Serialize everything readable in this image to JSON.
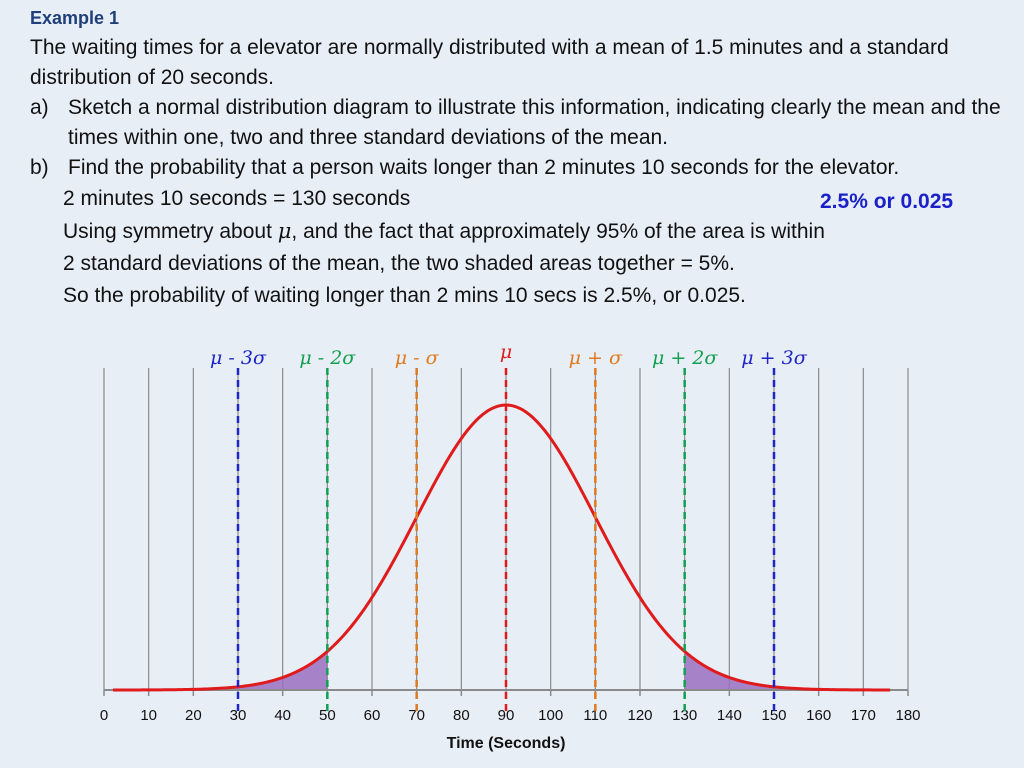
{
  "slide": {
    "heading": "Example 1",
    "intro": "The waiting times for a elevator are normally distributed with a mean of 1.5 minutes and a standard distribution of 20 seconds.",
    "items": [
      {
        "label": "a)",
        "text": "Sketch a normal distribution diagram to illustrate this information, indicating clearly the mean and the times within one, two and three standard deviations of the mean."
      },
      {
        "label": "b)",
        "text": "Find the probability that a person waits longer than 2 minutes 10 seconds for the elevator."
      }
    ],
    "working": {
      "line1": "2 minutes 10 seconds = 130 seconds",
      "line2_pre": "Using symmetry about ",
      "line2_mu": "μ",
      "line2_post": ", and the fact that approximately 95% of the area is within",
      "line3": "2 standard deviations of the mean, the two shaded areas together = 5%.",
      "line4": "So the probability of waiting longer than 2 mins 10 secs is 2.5%, or 0.025."
    },
    "answer": "2.5% or 0.025"
  },
  "colors": {
    "curve": "#e01b1b",
    "sigma3": "#1f24c8",
    "sigma2": "#11a050",
    "sigma1": "#e07a1e",
    "mean": "#e01b1b",
    "shade": "#9a6fc0",
    "grid": "#8a8a8a",
    "heading": "#1f3f7a"
  },
  "chart_data": {
    "type": "area",
    "distribution": "normal",
    "mean": 90,
    "sd": 20,
    "xlabel": "Time (Seconds)",
    "ylabel": "",
    "xlim": [
      0,
      180
    ],
    "xticks": [
      0,
      10,
      20,
      30,
      40,
      50,
      60,
      70,
      80,
      90,
      100,
      110,
      120,
      130,
      140,
      150,
      160,
      170,
      180
    ],
    "grid": true,
    "shaded_regions": [
      {
        "from": 0,
        "to": 50
      },
      {
        "from": 130,
        "to": 180
      }
    ],
    "markers": [
      {
        "x": 30,
        "label": "μ - 3σ",
        "color_key": "sigma3"
      },
      {
        "x": 50,
        "label": "μ - 2σ",
        "color_key": "sigma2"
      },
      {
        "x": 70,
        "label": "μ - σ",
        "color_key": "sigma1"
      },
      {
        "x": 90,
        "label": "μ",
        "color_key": "mean"
      },
      {
        "x": 110,
        "label": "μ + σ",
        "color_key": "sigma1"
      },
      {
        "x": 130,
        "label": "μ + 2σ",
        "color_key": "sigma2"
      },
      {
        "x": 150,
        "label": "μ + 3σ",
        "color_key": "sigma3"
      }
    ]
  }
}
